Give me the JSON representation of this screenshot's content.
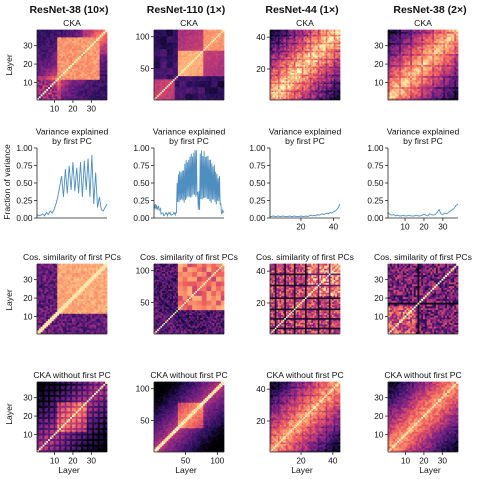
{
  "column_titles": [
    "ResNet-38 (10×)",
    "ResNet-110 (1×)",
    "ResNet-44 (1×)",
    "ResNet-38 (2×)"
  ],
  "row_titles": {
    "cka": "CKA",
    "variance": "Variance explained\nby first PC",
    "cos": "Cos. similarity of first PCs",
    "cka_wo": "CKA without first PC"
  },
  "axis_labels": {
    "layer": "Layer",
    "fraction_of_variance": "Fraction of variance"
  },
  "colormap": [
    "#000004",
    "#2c115f",
    "#721f81",
    "#b73779",
    "#f1605d",
    "#feb078",
    "#fcfdbf"
  ],
  "line_color": "#4f8fc0",
  "chart_data": [
    {
      "type": "heatmap",
      "title": "CKA",
      "column": "ResNet-38 (10×)",
      "xlabel": "",
      "ylabel": "Layer",
      "n_layers": 38,
      "x_ticks": [
        10,
        20,
        30
      ],
      "y_ticks": [
        10,
        20,
        30
      ],
      "description_values": {
        "block_diag_strong": true
      }
    },
    {
      "type": "heatmap",
      "title": "CKA",
      "column": "ResNet-110 (1×)",
      "xlabel": "",
      "ylabel": "",
      "n_layers": 110,
      "x_ticks": [],
      "y_ticks": [
        50,
        100
      ]
    },
    {
      "type": "heatmap",
      "title": "CKA",
      "column": "ResNet-44 (1×)",
      "xlabel": "",
      "ylabel": "",
      "n_layers": 44,
      "x_ticks": [],
      "y_ticks": [
        20,
        40
      ]
    },
    {
      "type": "heatmap",
      "title": "CKA",
      "column": "ResNet-38 (2×)",
      "xlabel": "",
      "ylabel": "",
      "n_layers": 38,
      "x_ticks": [],
      "y_ticks": [
        10,
        20,
        30
      ]
    },
    {
      "type": "line",
      "title": "Variance explained\nby first PC",
      "column": "ResNet-38 (10×)",
      "ylabel": "Fraction of variance",
      "ylim": [
        0,
        1.0
      ],
      "y_ticks": [
        0.0,
        0.25,
        0.5,
        0.75,
        1.0
      ],
      "x_ticks": [],
      "xlim": [
        1,
        38
      ],
      "y": [
        0.05,
        0.03,
        0.04,
        0.06,
        0.03,
        0.08,
        0.05,
        0.1,
        0.07,
        0.12,
        0.2,
        0.3,
        0.45,
        0.6,
        0.3,
        0.7,
        0.35,
        0.75,
        0.4,
        0.8,
        0.38,
        0.72,
        0.35,
        0.8,
        0.3,
        0.82,
        0.4,
        0.85,
        0.3,
        0.9,
        0.2,
        0.65,
        0.15,
        0.3,
        0.12,
        0.1,
        0.15,
        0.2
      ]
    },
    {
      "type": "line",
      "title": "Variance explained\nby first PC",
      "column": "ResNet-110 (1×)",
      "ylim": [
        0,
        1.0
      ],
      "y_ticks": [
        0.0,
        0.25,
        0.5,
        0.75,
        1.0
      ],
      "xlim": [
        1,
        110
      ],
      "x_ticks": []
    },
    {
      "type": "line",
      "title": "Variance explained\nby first PC",
      "column": "ResNet-44 (1×)",
      "ylim": [
        0,
        1.0
      ],
      "y_ticks": [
        0.0,
        0.25,
        0.5,
        0.75,
        1.0
      ],
      "xlim": [
        1,
        44
      ],
      "x_ticks": [
        20,
        40
      ],
      "y": [
        0.02,
        0.02,
        0.03,
        0.02,
        0.02,
        0.03,
        0.02,
        0.02,
        0.03,
        0.02,
        0.02,
        0.02,
        0.03,
        0.02,
        0.02,
        0.03,
        0.02,
        0.02,
        0.02,
        0.03,
        0.02,
        0.02,
        0.03,
        0.02,
        0.03,
        0.04,
        0.03,
        0.04,
        0.03,
        0.05,
        0.04,
        0.05,
        0.06,
        0.05,
        0.06,
        0.07,
        0.06,
        0.08,
        0.07,
        0.09,
        0.1,
        0.12,
        0.15,
        0.2
      ]
    },
    {
      "type": "line",
      "title": "Variance explained\nby first PC",
      "column": "ResNet-38 (2×)",
      "ylim": [
        0,
        1.0
      ],
      "y_ticks": [
        0.0,
        0.25,
        0.5,
        0.75,
        1.0
      ],
      "xlim": [
        1,
        38
      ],
      "x_ticks": [
        10,
        20,
        30
      ],
      "y": [
        0.08,
        0.05,
        0.04,
        0.05,
        0.03,
        0.04,
        0.03,
        0.03,
        0.04,
        0.03,
        0.03,
        0.04,
        0.03,
        0.03,
        0.03,
        0.04,
        0.03,
        0.03,
        0.04,
        0.05,
        0.04,
        0.03,
        0.06,
        0.05,
        0.04,
        0.05,
        0.08,
        0.12,
        0.06,
        0.05,
        0.07,
        0.06,
        0.08,
        0.1,
        0.12,
        0.14,
        0.18,
        0.2
      ]
    },
    {
      "type": "heatmap",
      "title": "Cos. similarity of first PCs",
      "column": "ResNet-38 (10×)",
      "ylabel": "Layer",
      "n_layers": 38,
      "x_ticks": [],
      "y_ticks": [
        10,
        20,
        30
      ]
    },
    {
      "type": "heatmap",
      "title": "Cos. similarity of first PCs",
      "column": "ResNet-110 (1×)",
      "n_layers": 110,
      "x_ticks": [],
      "y_ticks": [
        50,
        100
      ]
    },
    {
      "type": "heatmap",
      "title": "Cos. similarity of first PCs",
      "column": "ResNet-44 (1×)",
      "n_layers": 44,
      "x_ticks": [],
      "y_ticks": [
        20,
        40
      ]
    },
    {
      "type": "heatmap",
      "title": "Cos. similarity of first PCs",
      "column": "ResNet-38 (2×)",
      "n_layers": 38,
      "x_ticks": [],
      "y_ticks": [
        10,
        20,
        30
      ]
    },
    {
      "type": "heatmap",
      "title": "CKA without first PC",
      "column": "ResNet-38 (10×)",
      "xlabel": "Layer",
      "ylabel": "Layer",
      "n_layers": 38,
      "x_ticks": [
        10,
        20,
        30
      ],
      "y_ticks": [
        10,
        20,
        30
      ]
    },
    {
      "type": "heatmap",
      "title": "CKA without first PC",
      "column": "ResNet-110 (1×)",
      "xlabel": "Layer",
      "n_layers": 110,
      "x_ticks": [
        50,
        100
      ],
      "y_ticks": [
        50,
        100
      ]
    },
    {
      "type": "heatmap",
      "title": "CKA without first PC",
      "column": "ResNet-44 (1×)",
      "xlabel": "Layer",
      "n_layers": 44,
      "x_ticks": [
        20,
        40
      ],
      "y_ticks": [
        20,
        40
      ]
    },
    {
      "type": "heatmap",
      "title": "CKA without first PC",
      "column": "ResNet-38 (2×)",
      "xlabel": "Layer",
      "n_layers": 38,
      "x_ticks": [
        10,
        20,
        30
      ],
      "y_ticks": [
        10,
        20,
        30
      ]
    }
  ]
}
